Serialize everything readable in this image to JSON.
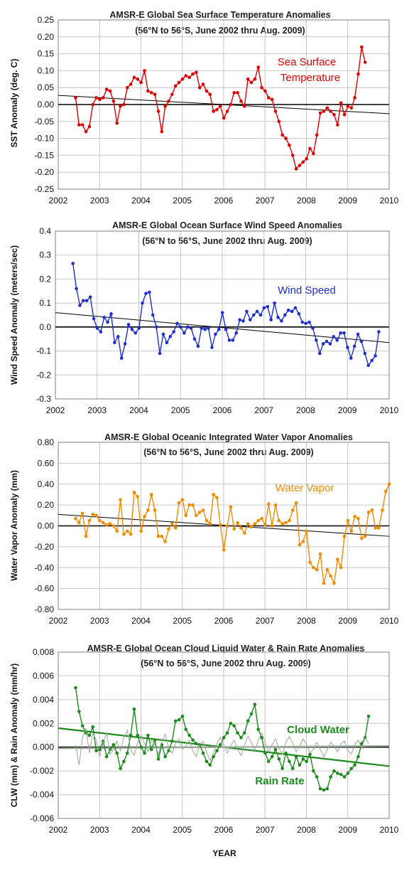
{
  "xlabel": "YEAR",
  "chart_data": [
    {
      "type": "line",
      "title": "AMSR-E Global Sea Surface Temperature Anomalies",
      "subtitle": "(56°N to 56°S, June 2002 thru Aug. 2009)",
      "xlabel": "",
      "ylabel": "SST Anomaly (deg. C)",
      "xlim": [
        2002,
        2010
      ],
      "ylim": [
        -0.25,
        0.25
      ],
      "yticks": [
        -0.25,
        -0.2,
        -0.15,
        -0.1,
        -0.05,
        0.0,
        0.05,
        0.1,
        0.15,
        0.2,
        0.25
      ],
      "ytick_labels": [
        "-0.25",
        "-0.20",
        "-0.15",
        "-0.10",
        "-0.05",
        "0.00",
        "0.05",
        "0.10",
        "0.15",
        "0.20",
        "0.25"
      ],
      "xticks": [
        2002,
        2003,
        2004,
        2005,
        2006,
        2007,
        2008,
        2009,
        2010
      ],
      "xtick_labels": [
        "2002",
        "2003",
        "2004",
        "2005",
        "2006",
        "2007",
        "2008",
        "2009",
        "2010"
      ],
      "grid": true,
      "series": [
        {
          "name": "Sea Surface Temperature",
          "label": "Sea Surface\nTemperature",
          "color": "#dd0000",
          "x_start": 2002.42,
          "step": 0.08333,
          "values": [
            0.02,
            -0.06,
            -0.06,
            -0.08,
            -0.065,
            0.0,
            0.02,
            0.015,
            0.02,
            0.045,
            0.04,
            0.01,
            -0.055,
            -0.005,
            0.0,
            0.05,
            0.06,
            0.08,
            0.075,
            0.065,
            0.1,
            0.04,
            0.035,
            0.03,
            -0.02,
            -0.08,
            -0.005,
            0.01,
            0.03,
            0.055,
            0.065,
            0.075,
            0.085,
            0.08,
            0.09,
            0.095,
            0.05,
            0.06,
            0.04,
            0.03,
            -0.02,
            -0.015,
            -0.005,
            -0.04,
            -0.02,
            0.0,
            0.035,
            0.035,
            0.01,
            -0.005,
            0.075,
            0.065,
            0.075,
            0.11,
            0.05,
            0.04,
            0.02,
            0.015,
            -0.02,
            -0.05,
            -0.09,
            -0.1,
            -0.12,
            -0.15,
            -0.19,
            -0.18,
            -0.17,
            -0.16,
            -0.13,
            -0.145,
            -0.09,
            -0.025,
            -0.02,
            -0.01,
            -0.02,
            -0.03,
            -0.06,
            0.005,
            -0.03,
            -0.005,
            -0.01,
            0.02,
            0.09,
            0.17,
            0.125
          ]
        }
      ],
      "trend": {
        "y_at_xmin": 0.027,
        "y_at_xmax": -0.027,
        "color": "#000000"
      }
    },
    {
      "type": "line",
      "title": "AMSR-E Global Ocean Surface Wind Speed Anomalies",
      "subtitle": "(56°N to 56°S, June 2002 thru Aug. 2009)",
      "xlabel": "",
      "ylabel": "Wind Speed Anomaly (meters/sec)",
      "xlim": [
        2002,
        2010
      ],
      "ylim": [
        -0.3,
        0.4
      ],
      "yticks": [
        -0.3,
        -0.2,
        -0.1,
        0.0,
        0.1,
        0.2,
        0.3,
        0.4
      ],
      "ytick_labels": [
        "-0.3",
        "-0.2",
        "-0.1",
        "0.0",
        "0.1",
        "0.2",
        "0.3",
        "0.4"
      ],
      "xticks": [
        2002,
        2003,
        2004,
        2005,
        2006,
        2007,
        2008,
        2009,
        2010
      ],
      "xtick_labels": [
        "2002",
        "2003",
        "2004",
        "2005",
        "2006",
        "2007",
        "2008",
        "2009",
        "2010"
      ],
      "grid": true,
      "series": [
        {
          "name": "Wind Speed",
          "label": "Wind Speed",
          "color": "#1f2fd0",
          "x_start": 2002.42,
          "step": 0.08333,
          "values": [
            0.265,
            0.16,
            0.09,
            0.11,
            0.11,
            0.125,
            0.035,
            -0.005,
            -0.02,
            0.04,
            0.02,
            0.055,
            -0.065,
            -0.04,
            -0.13,
            -0.07,
            0.01,
            -0.01,
            -0.025,
            -0.005,
            0.1,
            0.14,
            0.145,
            0.05,
            0.0,
            -0.11,
            -0.03,
            -0.065,
            -0.04,
            -0.02,
            0.015,
            0.0,
            -0.025,
            0.0,
            -0.005,
            -0.05,
            -0.08,
            -0.005,
            -0.01,
            -0.005,
            -0.085,
            -0.03,
            -0.01,
            0.06,
            -0.01,
            -0.055,
            -0.055,
            -0.025,
            0.03,
            0.025,
            0.065,
            0.03,
            0.05,
            0.065,
            0.05,
            0.08,
            0.085,
            0.03,
            0.1,
            0.04,
            0.025,
            0.05,
            0.07,
            0.065,
            0.08,
            0.055,
            0.02,
            0.015,
            0.02,
            -0.005,
            -0.055,
            -0.11,
            -0.07,
            -0.06,
            -0.07,
            -0.04,
            -0.055,
            -0.025,
            -0.025,
            -0.085,
            -0.13,
            -0.08,
            -0.03,
            -0.06,
            -0.11,
            -0.16,
            -0.14,
            -0.12,
            -0.02
          ]
        }
      ],
      "trend": {
        "y_at_xmin": 0.06,
        "y_at_xmax": -0.065,
        "color": "#000000"
      }
    },
    {
      "type": "line",
      "title": "AMSR-E Global Oceanic Integrated Water Vapor Anomalies",
      "subtitle": "(56°N to 56°S, June 2002 thru Aug. 2009)",
      "xlabel": "",
      "ylabel": "Water Vapor Anomaly (mm)",
      "xlim": [
        2002,
        2010
      ],
      "ylim": [
        -0.8,
        0.8
      ],
      "yticks": [
        -0.8,
        -0.6,
        -0.4,
        -0.2,
        0.0,
        0.2,
        0.4,
        0.6,
        0.8
      ],
      "ytick_labels": [
        "-0.80",
        "-0.60",
        "-0.40",
        "-0.20",
        "0.00",
        "0.20",
        "0.40",
        "0.60",
        "0.80"
      ],
      "xticks": [
        2002,
        2003,
        2004,
        2005,
        2006,
        2007,
        2008,
        2009,
        2010
      ],
      "xtick_labels": [
        "2002",
        "2003",
        "2004",
        "2005",
        "2006",
        "2007",
        "2008",
        "2009",
        "2010"
      ],
      "grid": true,
      "series": [
        {
          "name": "Water Vapor",
          "label": "Water Vapor",
          "color": "#f08a00",
          "x_start": 2002.42,
          "step": 0.08333,
          "values": [
            0.07,
            0.03,
            0.12,
            -0.1,
            0.05,
            0.11,
            0.1,
            0.05,
            0.03,
            0.01,
            0.02,
            0.0,
            -0.05,
            0.25,
            -0.08,
            -0.05,
            -0.08,
            0.32,
            0.28,
            -0.05,
            0.09,
            0.15,
            0.3,
            0.15,
            -0.1,
            -0.1,
            -0.15,
            -0.03,
            0.02,
            -0.02,
            0.22,
            0.25,
            0.1,
            0.2,
            0.2,
            0.1,
            0.13,
            0.15,
            0.05,
            0.02,
            0.3,
            0.27,
            0.01,
            -0.23,
            0.0,
            0.18,
            -0.03,
            0.03,
            -0.02,
            -0.07,
            0.02,
            -0.01,
            0.02,
            0.05,
            0.07,
            0.01,
            0.21,
            0.0,
            0.2,
            0.05,
            0.02,
            0.03,
            0.05,
            0.15,
            0.22,
            -0.18,
            -0.15,
            -0.05,
            -0.35,
            -0.4,
            -0.42,
            -0.27,
            -0.55,
            -0.42,
            -0.48,
            -0.55,
            -0.32,
            -0.4,
            -0.1,
            0.05,
            -0.05,
            0.09,
            0.07,
            -0.12,
            -0.1,
            0.13,
            0.15,
            -0.02,
            -0.02,
            0.15,
            0.33,
            0.4
          ]
        }
      ],
      "trend": {
        "y_at_xmin": 0.11,
        "y_at_xmax": -0.1,
        "color": "#000000"
      }
    },
    {
      "type": "line",
      "title": "AMSR-E Global Ocean Cloud Liquid Water & Rain Rate Anomalies",
      "subtitle": "(56°N to 56°S, June 2002 thru Aug. 2009)",
      "xlabel": "YEAR",
      "ylabel": "CLW (mm) & Rain Anomaly (mm/hr)",
      "xlim": [
        2002,
        2010
      ],
      "ylim": [
        -0.006,
        0.008
      ],
      "yticks": [
        -0.006,
        -0.004,
        -0.002,
        0.0,
        0.002,
        0.004,
        0.006,
        0.008
      ],
      "ytick_labels": [
        "-0.006",
        "-0.004",
        "-0.002",
        "0.000",
        "0.002",
        "0.004",
        "0.006",
        "0.008"
      ],
      "xticks": [
        2002,
        2003,
        2004,
        2005,
        2006,
        2007,
        2008,
        2009,
        2010
      ],
      "xtick_labels": [
        "2002",
        "2003",
        "2004",
        "2005",
        "2006",
        "2007",
        "2008",
        "2009",
        "2010"
      ],
      "grid": true,
      "series": [
        {
          "name": "Rain Rate",
          "label": "Rain Rate",
          "color": "#1c8a1c",
          "x_start": 2002.42,
          "step": 0.08333,
          "values": [
            0.005,
            0.003,
            0.0018,
            0.0012,
            0.001,
            0.0017,
            -0.0003,
            -0.0002,
            0.0005,
            -0.0008,
            -0.0002,
            0.0002,
            -0.0005,
            -0.0018,
            -0.0012,
            -0.0005,
            0.001,
            0.0032,
            0.001,
            0.0,
            -0.0005,
            0.001,
            -0.0002,
            0.0006,
            -0.001,
            0.0002,
            -0.0008,
            -0.0003,
            0.0005,
            0.0022,
            0.0023,
            0.0026,
            0.0015,
            0.001,
            0.0006,
            0.0003,
            0.0002,
            -0.0005,
            -0.0012,
            -0.0015,
            -0.0008,
            -0.0003,
            0.0002,
            0.0008,
            0.0012,
            0.002,
            0.0018,
            0.0012,
            0.0008,
            0.0012,
            0.0022,
            0.0028,
            0.0036,
            0.0015,
            0.0008,
            -0.0005,
            -0.0012,
            -0.0008,
            -0.0002,
            -0.001,
            -0.0018,
            -0.0005,
            -0.0012,
            -0.0018,
            -0.0008,
            -0.0015,
            -0.001,
            -0.0012,
            -0.0006,
            -0.002,
            -0.0025,
            -0.0035,
            -0.0036,
            -0.0035,
            -0.0025,
            -0.002,
            -0.0022,
            -0.0023,
            -0.0025,
            -0.0022,
            -0.0018,
            -0.0015,
            -0.0008,
            0.0003,
            0.0008,
            0.0026
          ]
        },
        {
          "name": "Cloud Water",
          "label": "Cloud Water",
          "color": "#9aa89a",
          "x_start": 2002.42,
          "step": 0.08333,
          "values": [
            0.0002,
            -0.0015,
            0.0008,
            0.0016,
            -0.0005,
            0.0012,
            0.0006,
            -0.0008,
            0.0004,
            0.0012,
            -0.0006,
            -0.0002,
            0.0005,
            -0.0003,
            0.0008,
            0.0014,
            -0.0002,
            -0.0007,
            0.0004,
            0.001,
            0.0003,
            -0.0004,
            0.0006,
            0.0002,
            -0.0006,
            0.0004,
            0.0011,
            -0.0001,
            -0.0005,
            0.0003,
            0.0007,
            -0.0002,
            0.0001,
            0.0006,
            -0.0003,
            -0.0008,
            0.0002,
            0.0005,
            -0.0004,
            -0.0011,
            -0.0005,
            0.0003,
            0.0008,
            0.0002,
            -0.0005,
            0.0001,
            0.0006,
            -0.0002,
            -0.0007,
            0.0002,
            0.0009,
            0.0004,
            -0.0003,
            0.0006,
            0.0012,
            0.0004,
            -0.0004,
            0.0002,
            0.0007,
            -0.0001,
            -0.0006,
            0.0004,
            0.0009,
            0.0003,
            -0.0004,
            0.0001,
            0.0007,
            0.0002,
            -0.0005,
            -0.0002,
            0.0004,
            -0.0002,
            -0.0008,
            -0.0002,
            0.0004,
            0.0001,
            -0.0004,
            0.0003,
            0.0005,
            -0.0003,
            -0.0006,
            0.0002,
            0.0006,
            -0.0001,
            0.0008,
            0.0003
          ]
        }
      ],
      "trends": [
        {
          "name": "Rain Rate trend",
          "y_at_xmin": 0.0016,
          "y_at_xmax": -0.0016,
          "color": "#1c8a1c"
        },
        {
          "name": "Cloud Water trend",
          "y_at_xmin": -0.0001,
          "y_at_xmax": 0.0001,
          "color": "#9aa89a"
        }
      ]
    }
  ]
}
